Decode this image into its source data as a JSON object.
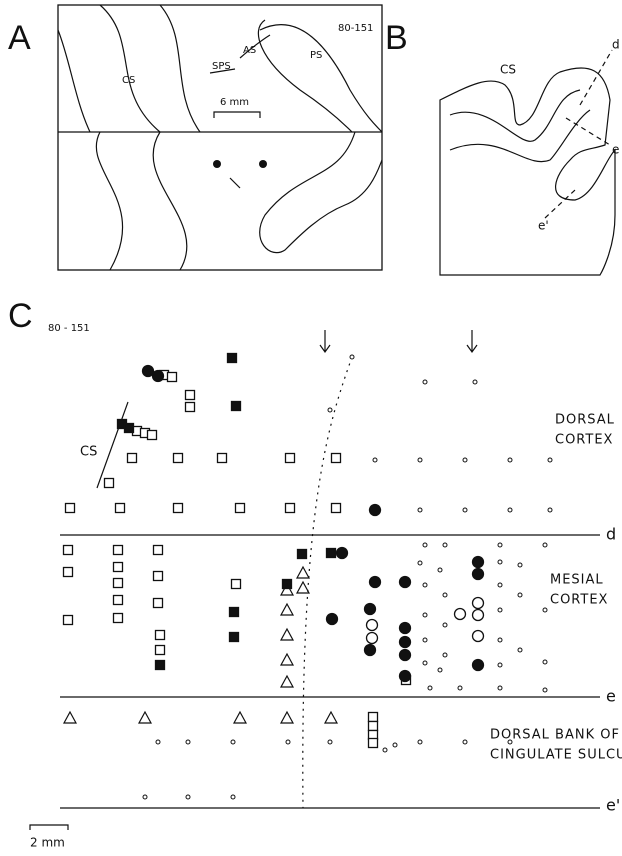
{
  "panels": {
    "a": {
      "label": "A",
      "id": "80-151",
      "sulci": [
        "PS",
        "AS",
        "SPS",
        "CS"
      ],
      "scale": "6 mm"
    },
    "b": {
      "label": "B",
      "sulcus": "CS",
      "sections": [
        "d",
        "e",
        "e'"
      ]
    },
    "c": {
      "label": "C",
      "id": "80 - 151",
      "sulcus": "CS",
      "regions": [
        {
          "lines": [
            "DORSAL",
            "CORTEX"
          ]
        },
        {
          "lines": [
            "MESIAL",
            "CORTEX"
          ]
        },
        {
          "lines": [
            "DORSAL BANK OF",
            "CINGULATE SULCUS"
          ]
        }
      ],
      "boundaries": [
        "d",
        "e",
        "e'"
      ],
      "scale": "2 mm"
    }
  }
}
